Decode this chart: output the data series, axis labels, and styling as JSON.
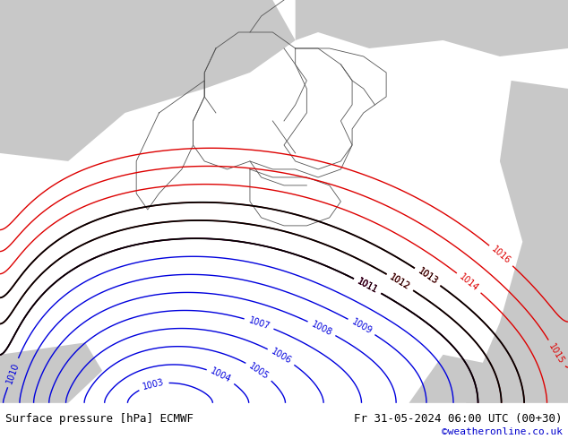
{
  "title_left": "Surface pressure [hPa] ECMWF",
  "title_right": "Fr 31-05-2024 06:00 UTC (00+30)",
  "watermark": "©weatheronline.co.uk",
  "land_color": "#b8d8a0",
  "sea_color": "#c8c8c8",
  "border_color": "#555555",
  "contour_blue_color": "#0000dd",
  "contour_red_color": "#dd0000",
  "contour_black_color": "#000000",
  "bottom_bar_color": "#ffffff",
  "bottom_text_color": "#000000",
  "watermark_color": "#0000cc",
  "fig_width": 6.34,
  "fig_height": 4.9,
  "dpi": 100,
  "font_size_bottom": 9,
  "font_size_watermark": 8,
  "font_size_clabel": 7
}
